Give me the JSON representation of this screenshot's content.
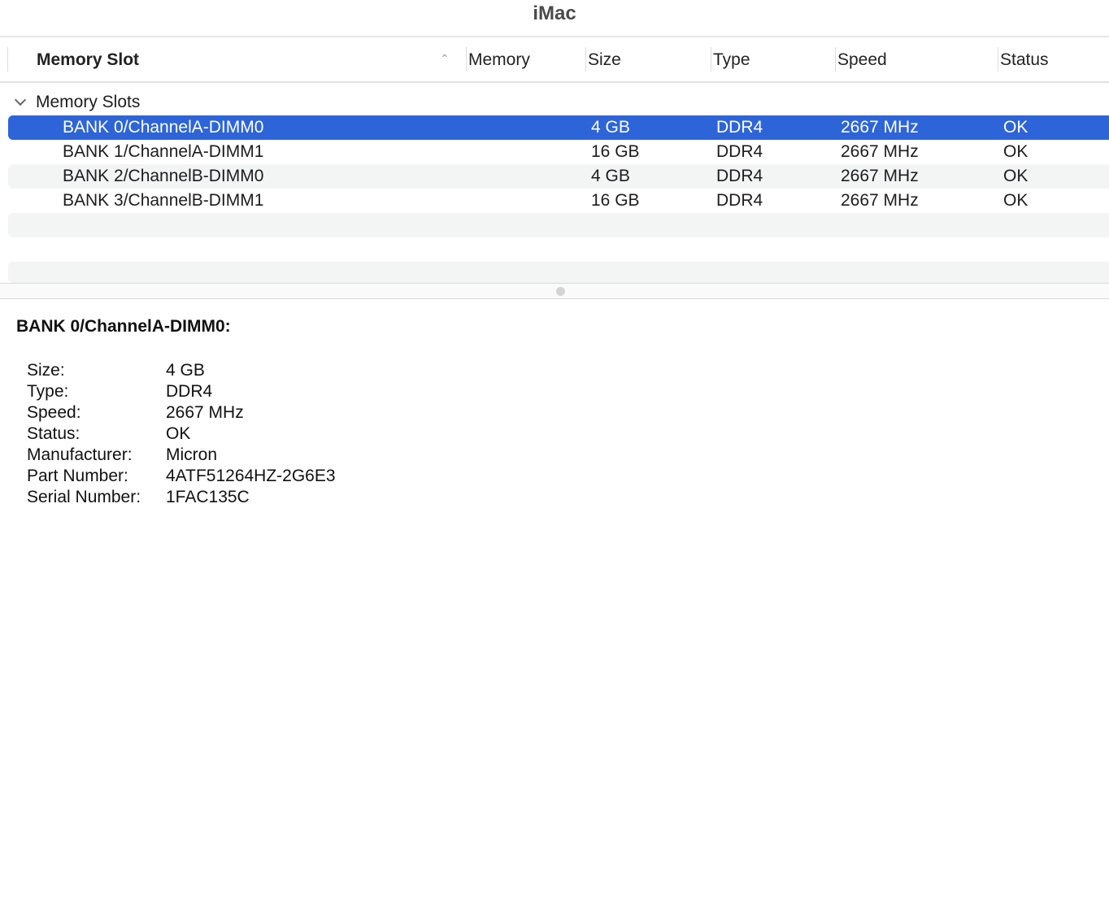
{
  "window": {
    "title": "iMac"
  },
  "columns": {
    "slot": "Memory Slot",
    "memory": "Memory",
    "size": "Size",
    "type": "Type",
    "speed": "Speed",
    "status": "Status"
  },
  "group": {
    "label": "Memory Slots"
  },
  "rows": [
    {
      "slot": "BANK 0/ChannelA-DIMM0",
      "size": "4 GB",
      "type": "DDR4",
      "speed": "2667 MHz",
      "status": "OK"
    },
    {
      "slot": "BANK 1/ChannelA-DIMM1",
      "size": "16 GB",
      "type": "DDR4",
      "speed": "2667 MHz",
      "status": "OK"
    },
    {
      "slot": "BANK 2/ChannelB-DIMM0",
      "size": "4 GB",
      "type": "DDR4",
      "speed": "2667 MHz",
      "status": "OK"
    },
    {
      "slot": "BANK 3/ChannelB-DIMM1",
      "size": "16 GB",
      "type": "DDR4",
      "speed": "2667 MHz",
      "status": "OK"
    }
  ],
  "selection_color": "#2d64d8",
  "details": {
    "title": "BANK 0/ChannelA-DIMM0:",
    "items": [
      {
        "label": "Size:",
        "value": "4 GB"
      },
      {
        "label": "Type:",
        "value": "DDR4"
      },
      {
        "label": "Speed:",
        "value": "2667 MHz"
      },
      {
        "label": "Status:",
        "value": "OK"
      },
      {
        "label": "Manufacturer:",
        "value": "Micron"
      },
      {
        "label": "Part Number:",
        "value": "4ATF51264HZ-2G6E3"
      },
      {
        "label": "Serial Number:",
        "value": "1FAC135C"
      }
    ]
  }
}
